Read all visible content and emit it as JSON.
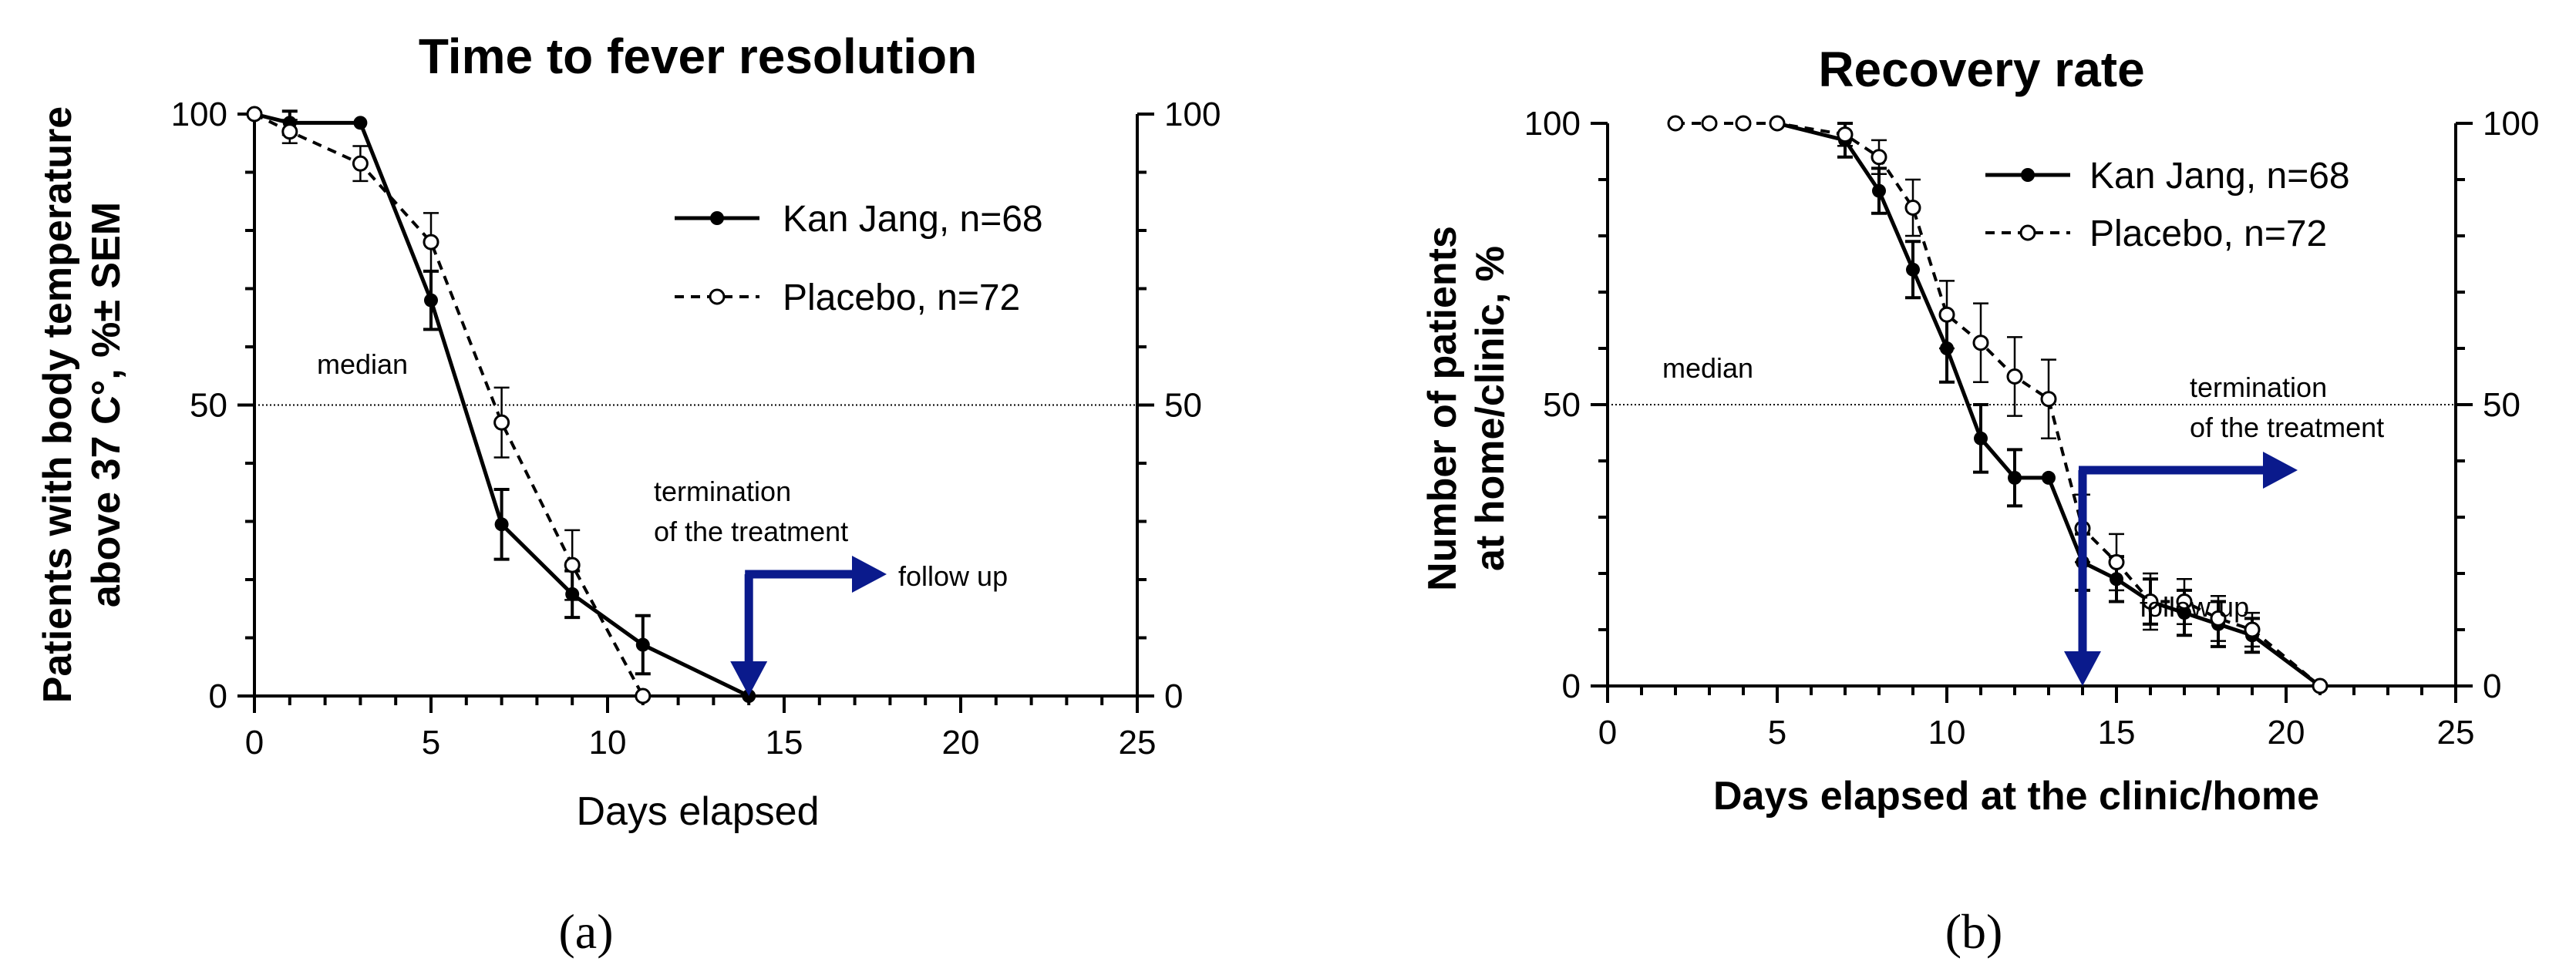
{
  "figure_labels": [
    "(a)",
    "(b)"
  ],
  "colors": {
    "axis": "#000000",
    "arrow": "#0a1a8c"
  },
  "chart_data": [
    {
      "type": "line",
      "title": "Time to fever resolution",
      "xlabel": "Days elapsed",
      "ylabel_lines": [
        "Patients with body temperature",
        "above 37 C°,  %± SEM"
      ],
      "xlim": [
        0,
        25
      ],
      "ylim": [
        0,
        100
      ],
      "xticks": [
        0,
        5,
        10,
        15,
        20,
        25
      ],
      "yticks": [
        0,
        50,
        100
      ],
      "right_axis_ticks": [
        0,
        50,
        100
      ],
      "grid": false,
      "legend_position": "top-right",
      "reference_line": {
        "y": 50,
        "label": "median"
      },
      "annotations": {
        "termination": [
          "termination",
          "of the treatment"
        ],
        "follow_up": "follow up",
        "arrow_day": 14
      },
      "series": [
        {
          "name": "Kan Jang, n=68",
          "style": "solid",
          "marker": "filled",
          "x": [
            0,
            1,
            3,
            5,
            7,
            9,
            11,
            14
          ],
          "y": [
            100,
            98.5,
            98.5,
            68,
            29.5,
            17.5,
            8.8,
            0
          ],
          "error": [
            null,
            2,
            null,
            5,
            6,
            4,
            5,
            null
          ]
        },
        {
          "name": "Placebo, n=72",
          "style": "dashed",
          "marker": "open",
          "x": [
            0,
            1,
            3,
            5,
            7,
            9,
            11
          ],
          "y": [
            100,
            97,
            91.5,
            78,
            47,
            22.5,
            0
          ],
          "error": [
            null,
            2,
            3,
            5,
            6,
            6,
            null
          ]
        }
      ]
    },
    {
      "type": "line",
      "title": "Recovery rate",
      "xlabel": "Days elapsed at the clinic/home",
      "ylabel_lines": [
        "Number of patients",
        "at home/clinic, %"
      ],
      "xlim": [
        0,
        25
      ],
      "ylim": [
        0,
        100
      ],
      "xticks": [
        0,
        5,
        10,
        15,
        20,
        25
      ],
      "yticks": [
        0,
        50,
        100
      ],
      "right_axis_ticks": [
        0,
        50,
        100
      ],
      "grid": false,
      "legend_position": "top-right",
      "reference_line": {
        "y": 50,
        "label": "median"
      },
      "annotations": {
        "termination": [
          "termination",
          "of the treatment"
        ],
        "follow_up": "follow up",
        "arrow_day": 14
      },
      "series": [
        {
          "name": "Kan Jang, n=68",
          "style": "solid",
          "marker": "filled",
          "x": [
            5,
            7,
            8,
            9,
            10,
            11,
            12,
            13,
            14,
            15,
            16,
            17,
            18,
            19,
            21
          ],
          "y": [
            100,
            97,
            88,
            74,
            60,
            44,
            37,
            37,
            22,
            19,
            15,
            13,
            11,
            9,
            0
          ],
          "error": [
            null,
            3,
            4,
            5,
            6,
            6,
            5,
            null,
            5,
            4,
            4,
            4,
            4,
            3,
            null
          ]
        },
        {
          "name": "Placebo, n=72",
          "style": "dashed",
          "marker": "open",
          "x": [
            2,
            3,
            4,
            5,
            7,
            8,
            9,
            10,
            11,
            12,
            13,
            14,
            15,
            16,
            17,
            18,
            19,
            21
          ],
          "y": [
            100,
            100,
            100,
            100,
            98,
            94,
            85,
            66,
            61,
            55,
            51,
            28,
            22,
            15,
            15,
            12,
            10,
            0
          ],
          "error": [
            null,
            null,
            null,
            null,
            2,
            3,
            5,
            6,
            7,
            7,
            7,
            6,
            5,
            5,
            4,
            4,
            3,
            null
          ]
        }
      ]
    }
  ]
}
